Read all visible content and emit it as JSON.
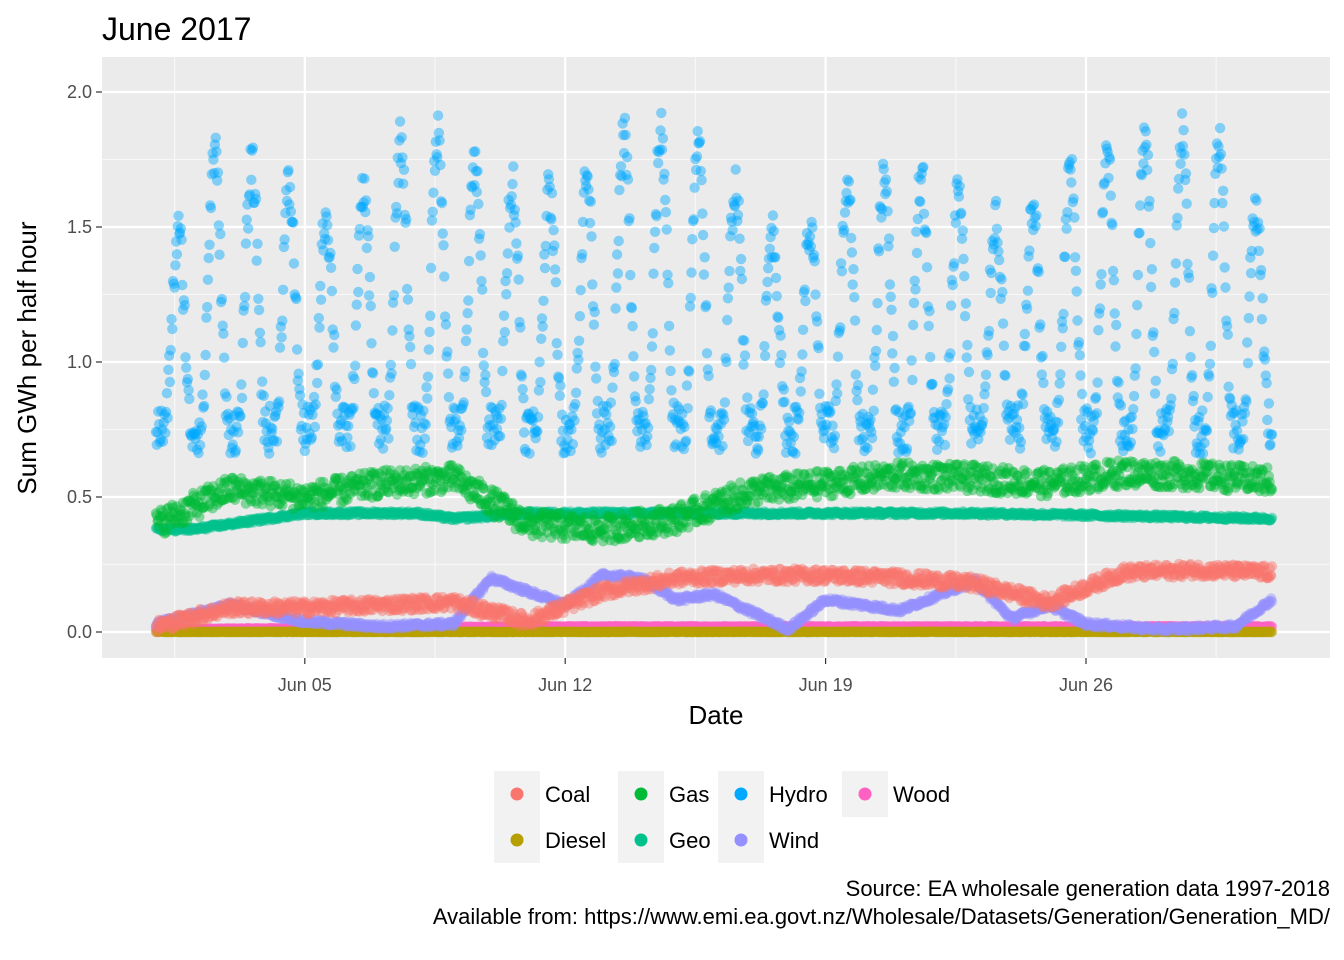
{
  "chart_data": {
    "type": "scatter",
    "title": "June 2017",
    "xlabel": "Date",
    "ylabel": "Sum GWh per half hour",
    "xlim": [
      "2017-06-01",
      "2017-07-01"
    ],
    "ylim": [
      0,
      2.0
    ],
    "x_ticks": [
      {
        "date": "2017-06-05",
        "label": "Jun 05"
      },
      {
        "date": "2017-06-12",
        "label": "Jun 12"
      },
      {
        "date": "2017-06-19",
        "label": "Jun 19"
      },
      {
        "date": "2017-06-26",
        "label": "Jun 26"
      }
    ],
    "y_ticks": [
      0.0,
      0.5,
      1.0,
      1.5,
      2.0
    ],
    "y_tick_labels": [
      "0.0",
      "0.5",
      "1.0",
      "1.5",
      "2.0"
    ],
    "grid": true,
    "legend_position": "bottom",
    "series": [
      {
        "name": "Coal",
        "color": "#F8766D",
        "dates": [
          "2017-06-01",
          "2017-06-03",
          "2017-06-05",
          "2017-06-07",
          "2017-06-09",
          "2017-06-11",
          "2017-06-13",
          "2017-06-15",
          "2017-06-17",
          "2017-06-19",
          "2017-06-21",
          "2017-06-23",
          "2017-06-25",
          "2017-06-27",
          "2017-06-29",
          "2017-07-01"
        ],
        "values": [
          0.02,
          0.09,
          0.09,
          0.1,
          0.11,
          0.04,
          0.15,
          0.2,
          0.21,
          0.21,
          0.2,
          0.18,
          0.11,
          0.22,
          0.23,
          0.22
        ]
      },
      {
        "name": "Diesel",
        "color": "#B79F00",
        "dates": [
          "2017-06-01",
          "2017-06-16",
          "2017-07-01"
        ],
        "values": [
          0.0,
          0.0,
          0.0
        ]
      },
      {
        "name": "Gas",
        "color": "#00BA38",
        "dates": [
          "2017-06-01",
          "2017-06-03",
          "2017-06-05",
          "2017-06-07",
          "2017-06-09",
          "2017-06-11",
          "2017-06-13",
          "2017-06-15",
          "2017-06-17",
          "2017-06-19",
          "2017-06-21",
          "2017-06-23",
          "2017-06-25",
          "2017-06-27",
          "2017-06-29",
          "2017-07-01"
        ],
        "values": [
          0.4,
          0.53,
          0.5,
          0.55,
          0.57,
          0.4,
          0.38,
          0.42,
          0.52,
          0.55,
          0.58,
          0.57,
          0.55,
          0.59,
          0.58,
          0.56
        ]
      },
      {
        "name": "Geo",
        "color": "#00C08B",
        "dates": [
          "2017-06-01",
          "2017-06-02",
          "2017-06-03",
          "2017-06-05",
          "2017-06-08",
          "2017-06-09",
          "2017-06-11",
          "2017-06-15",
          "2017-06-19",
          "2017-06-23",
          "2017-06-27",
          "2017-07-01"
        ],
        "values": [
          0.38,
          0.38,
          0.4,
          0.44,
          0.44,
          0.42,
          0.44,
          0.44,
          0.44,
          0.44,
          0.43,
          0.42
        ]
      },
      {
        "name": "Hydro",
        "color": "#00A9FF",
        "dates": [
          "2017-06-01",
          "2017-06-02",
          "2017-06-04",
          "2017-06-06",
          "2017-06-08",
          "2017-06-10",
          "2017-06-12",
          "2017-06-14",
          "2017-06-16",
          "2017-06-18",
          "2017-06-20",
          "2017-06-22",
          "2017-06-24",
          "2017-06-26",
          "2017-06-28",
          "2017-06-30",
          "2017-07-01"
        ],
        "values": [
          1.0,
          1.8,
          1.7,
          1.5,
          1.9,
          1.7,
          1.6,
          1.9,
          1.75,
          1.4,
          1.7,
          1.7,
          1.5,
          1.75,
          1.85,
          1.8,
          1.4
        ]
      },
      {
        "name": "Wind",
        "color": "#9590FF",
        "dates": [
          "2017-06-01",
          "2017-06-03",
          "2017-06-05",
          "2017-06-07",
          "2017-06-09",
          "2017-06-10",
          "2017-06-12",
          "2017-06-13",
          "2017-06-14",
          "2017-06-15",
          "2017-06-16",
          "2017-06-18",
          "2017-06-19",
          "2017-06-21",
          "2017-06-23",
          "2017-06-24",
          "2017-06-25",
          "2017-06-26",
          "2017-06-28",
          "2017-06-30",
          "2017-07-01"
        ],
        "values": [
          0.03,
          0.1,
          0.04,
          0.02,
          0.03,
          0.2,
          0.1,
          0.21,
          0.2,
          0.12,
          0.14,
          0.01,
          0.12,
          0.08,
          0.19,
          0.05,
          0.1,
          0.03,
          0.01,
          0.02,
          0.12
        ]
      },
      {
        "name": "Wood",
        "color": "#FF61C3",
        "dates": [
          "2017-06-01",
          "2017-06-11",
          "2017-07-01"
        ],
        "values": [
          0.01,
          0.02,
          0.02
        ]
      }
    ]
  },
  "caption": {
    "line1": "Source: EA wholesale generation data 1997-2018",
    "line2": "Available from: https://www.emi.ea.govt.nz/Wholesale/Datasets/Generation/Generation_MD/"
  }
}
